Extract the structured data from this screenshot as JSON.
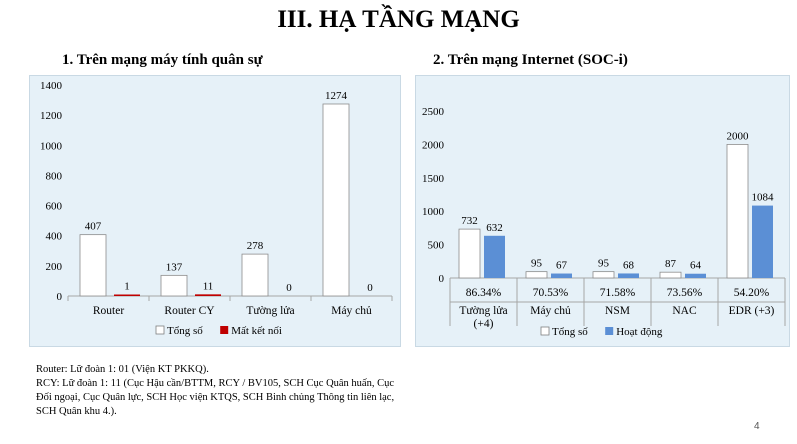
{
  "slide": {
    "title": "III. HẠ TẦNG MẠNG",
    "subtitle_left": "1. Trên mạng máy tính quân sự",
    "subtitle_right": "2. Trên mạng Internet (SOC-i)",
    "page_number": "4",
    "notes": [
      "Router: Lữ đoàn 1: 01 (Viện KT PKKQ).",
      "RCY: Lữ đoàn 1: 11 (Cục Hậu cần/BTTM,  RCY / BV105, SCH Cục Quân huấn, Cục Đối ngoại,  Cục Quân lực, SCH Học viện KTQS, SCH Binh chủng Thông tin liên lạc, SCH Quân khu 4.)."
    ]
  },
  "chart_data": [
    {
      "type": "bar",
      "title": "1. Trên mạng máy tính quân sự",
      "categories": [
        "Router",
        "Router CY",
        "Tường lửa",
        "Máy chủ"
      ],
      "series": [
        {
          "name": "Tổng số",
          "values": [
            407,
            137,
            278,
            1274
          ],
          "color": "#ffffff"
        },
        {
          "name": "Mất kết nối",
          "values": [
            1,
            11,
            0,
            0
          ],
          "color": "#c00000"
        }
      ],
      "ylim": [
        0,
        1400
      ],
      "yticks": [
        "0",
        "200",
        "400",
        "600",
        "800",
        "1000",
        "1200",
        "1400"
      ],
      "legend_position": "bottom",
      "grid": false
    },
    {
      "type": "bar",
      "title": "2. Trên mạng Internet (SOC-i)",
      "categories": [
        "Tường lửa (+4)",
        "Máy chủ",
        "NSM",
        "NAC",
        "EDR (+3)"
      ],
      "category_lines": [
        [
          "Tường lửa",
          "(+4)"
        ],
        [
          "Máy chủ"
        ],
        [
          "NSM"
        ],
        [
          "NAC"
        ],
        [
          "EDR (+3)"
        ]
      ],
      "percent_row": [
        "86.34%",
        "70.53%",
        "71.58%",
        "73.56%",
        "54.20%"
      ],
      "series": [
        {
          "name": "Tổng số",
          "values": [
            732,
            95,
            95,
            87,
            2000
          ],
          "color": "#ffffff"
        },
        {
          "name": "Hoạt động",
          "values": [
            632,
            67,
            68,
            64,
            1084
          ],
          "color": "#5b8fd5"
        }
      ],
      "ylim": [
        0,
        2500
      ],
      "yticks": [
        "0",
        "500",
        "1000",
        "1500",
        "2000",
        "2500"
      ],
      "legend_position": "bottom",
      "grid": false
    }
  ]
}
